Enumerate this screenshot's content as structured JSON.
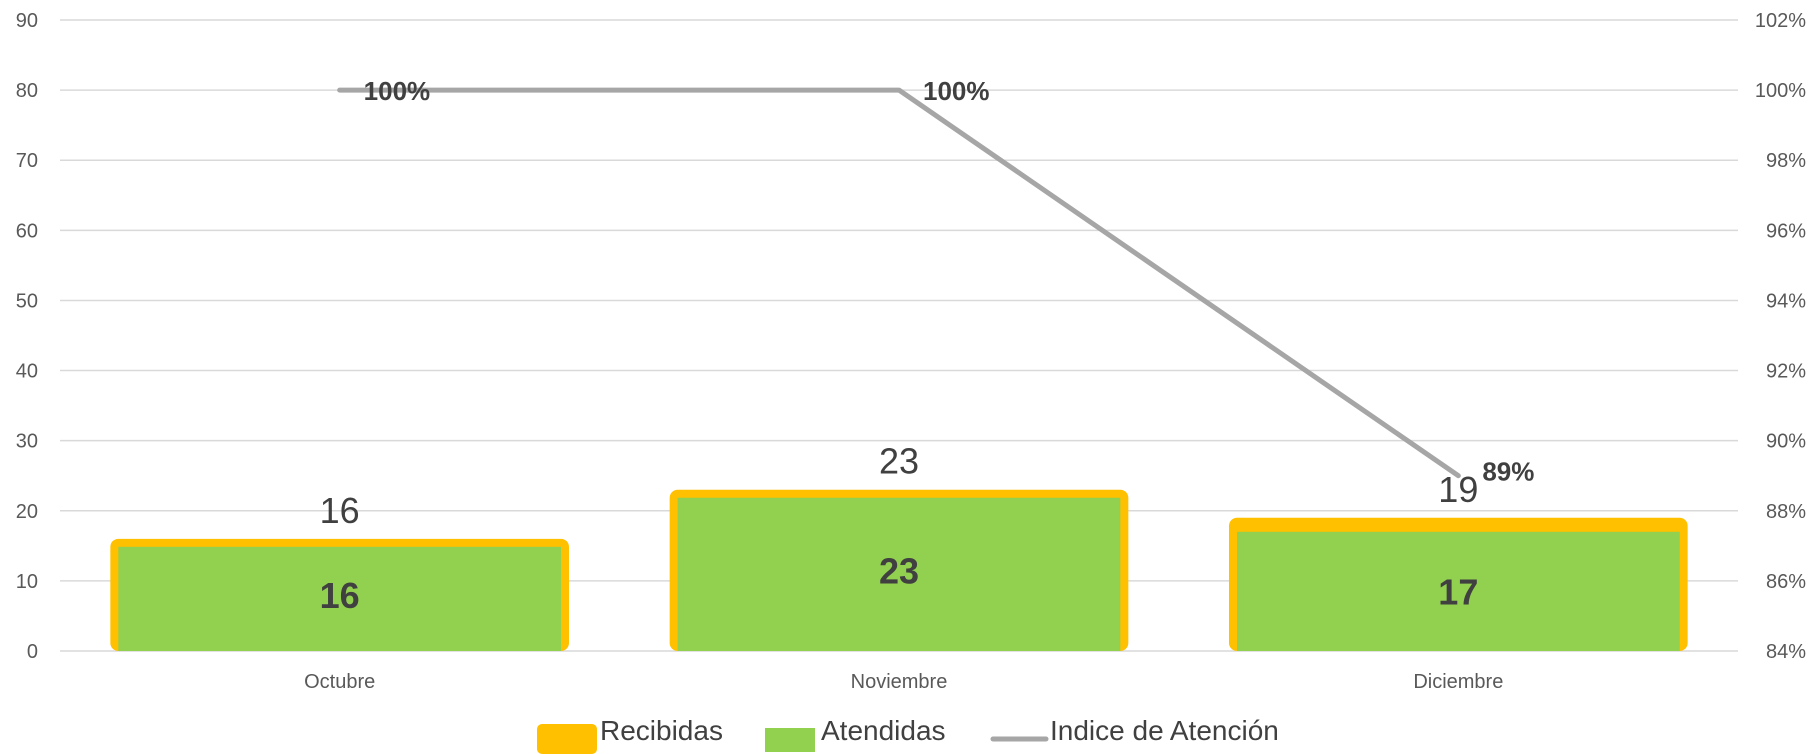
{
  "chart_data": {
    "type": "bar",
    "categories": [
      "Octubre",
      "Noviembre",
      "Diciembre"
    ],
    "series": [
      {
        "name": "Recibidas",
        "kind": "bar",
        "axis": "left",
        "values": [
          16,
          23,
          19
        ],
        "color": "#FFC000"
      },
      {
        "name": "Atendidas",
        "kind": "bar",
        "axis": "left",
        "values": [
          16,
          23,
          17
        ],
        "color": "#92D050"
      },
      {
        "name": "Indice de Atención",
        "kind": "line",
        "axis": "right",
        "values": [
          1.0,
          1.0,
          0.89
        ],
        "color": "#A6A6A6"
      }
    ],
    "y_left": {
      "min": 0,
      "max": 90,
      "step": 10,
      "tick_labels": [
        "0",
        "10",
        "20",
        "30",
        "40",
        "50",
        "60",
        "70",
        "80",
        "90"
      ]
    },
    "y_right": {
      "min": 0.84,
      "max": 1.02,
      "step": 0.02,
      "tick_labels": [
        "84%",
        "86%",
        "88%",
        "90%",
        "92%",
        "94%",
        "96%",
        "98%",
        "100%",
        "102%"
      ]
    },
    "data_labels": {
      "recibidas": [
        "16",
        "23",
        "19"
      ],
      "atendidas": [
        "16",
        "23",
        "17"
      ],
      "indice": [
        "100%",
        "100%",
        "89%"
      ]
    },
    "grid": true,
    "legend_position": "bottom",
    "legend": [
      {
        "name": "Recibidas",
        "symbol": "square",
        "color": "#FFC000"
      },
      {
        "name": "Atendidas",
        "symbol": "square",
        "color": "#92D050"
      },
      {
        "name": "Indice de Atención",
        "symbol": "line",
        "color": "#A6A6A6"
      }
    ]
  }
}
